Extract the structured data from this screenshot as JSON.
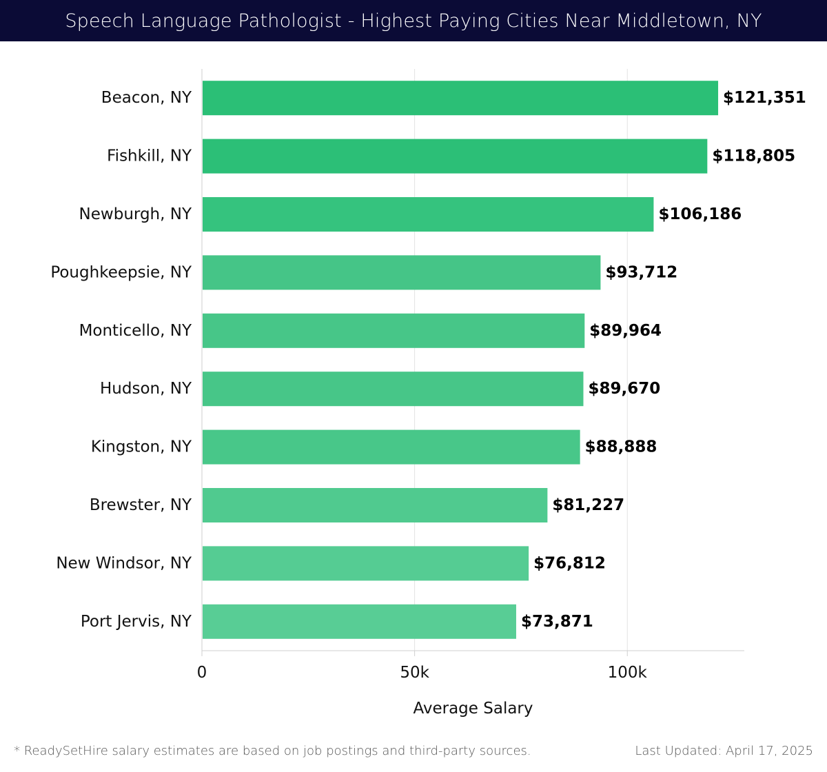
{
  "header": {
    "title": "Speech Language Pathologist - Highest Paying Cities Near Middletown, NY"
  },
  "chart_data": {
    "type": "bar",
    "orientation": "horizontal",
    "title": "Speech Language Pathologist - Highest Paying Cities Near Middletown, NY",
    "categories": [
      "Beacon, NY",
      "Fishkill, NY",
      "Newburgh, NY",
      "Poughkeepsie, NY",
      "Monticello, NY",
      "Hudson, NY",
      "Kingston, NY",
      "Brewster, NY",
      "New Windsor, NY",
      "Port Jervis, NY"
    ],
    "values": [
      121351,
      118805,
      106186,
      93712,
      89964,
      89670,
      88888,
      81227,
      76812,
      73871
    ],
    "value_labels": [
      "$121,351",
      "$118,805",
      "$106,186",
      "$93,712",
      "$89,964",
      "$89,670",
      "$88,888",
      "$81,227",
      "$76,812",
      "$73,871"
    ],
    "bar_colors": [
      "#2bbf76",
      "#2cbf77",
      "#35c37e",
      "#45c587",
      "#47c688",
      "#47c688",
      "#48c789",
      "#50ca8f",
      "#55cc93",
      "#58cd95"
    ],
    "xlabel": "Average Salary",
    "ylabel": "",
    "xlim": [
      0,
      127500
    ],
    "xticks": [
      0,
      50000,
      100000
    ],
    "xtick_labels": [
      "0",
      "50k",
      "100k"
    ],
    "grid": true
  },
  "footer": {
    "note": "* ReadySetHire salary estimates are based on job postings and third-party sources.",
    "updated": "Last Updated: April 17, 2025"
  }
}
